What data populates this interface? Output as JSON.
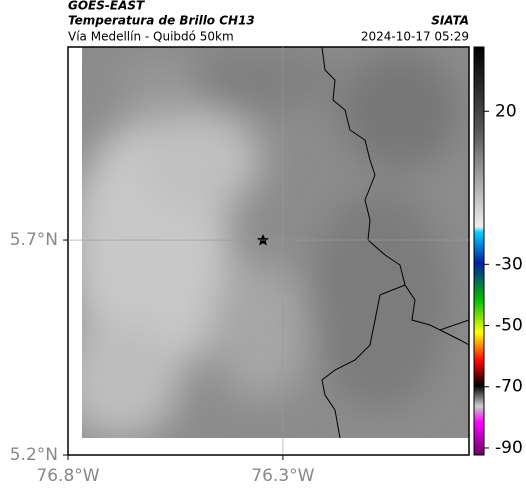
{
  "header": {
    "source": "GOES-EAST",
    "product": "Temperatura de Brillo CH13",
    "region": "Vía Medellín - Quibdó 50km",
    "agency": "SIATA",
    "timestamp": "2024-10-17 05:29"
  },
  "map": {
    "xlim": [
      -76.8,
      -75.867
    ],
    "ylim": [
      5.2,
      6.149
    ],
    "xticks": [
      {
        "value": -76.8,
        "label": "76.8°W"
      },
      {
        "value": -76.3,
        "label": "76.3°W"
      }
    ],
    "yticks": [
      {
        "value": 5.2,
        "label": "5.2°N"
      },
      {
        "value": 5.7,
        "label": "5.7°N"
      }
    ],
    "grid": true
  },
  "colorbar": {
    "clim": [
      -92.3,
      41
    ],
    "ticks": [
      20,
      -30,
      -50,
      -70,
      -90
    ]
  }
}
